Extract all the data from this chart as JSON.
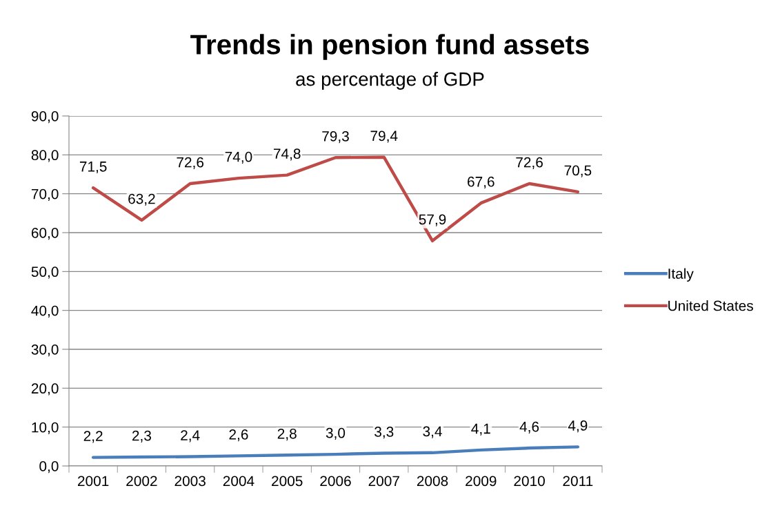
{
  "chart_data": {
    "type": "line",
    "title": "Trends in pension fund assets",
    "subtitle": "as percentage of GDP",
    "categories": [
      "2001",
      "2002",
      "2003",
      "2004",
      "2005",
      "2006",
      "2007",
      "2008",
      "2009",
      "2010",
      "2011"
    ],
    "series": [
      {
        "name": "Italy",
        "color": "#4a7ebb",
        "values": [
          2.2,
          2.3,
          2.4,
          2.6,
          2.8,
          3.0,
          3.3,
          3.4,
          4.1,
          4.6,
          4.9
        ],
        "value_labels": [
          "2,2",
          "2,3",
          "2,4",
          "2,6",
          "2,8",
          "3,0",
          "3,3",
          "3,4",
          "4,1",
          "4,6",
          "4,9"
        ]
      },
      {
        "name": "United States",
        "color": "#be4b48",
        "values": [
          71.5,
          63.2,
          72.6,
          74.0,
          74.8,
          79.3,
          79.4,
          57.9,
          67.6,
          72.6,
          70.5
        ],
        "value_labels": [
          "71,5",
          "63,2",
          "72,6",
          "74,0",
          "74,8",
          "79,3",
          "79,4",
          "57,9",
          "67,6",
          "72,6",
          "70,5"
        ]
      }
    ],
    "ylim": [
      0,
      90
    ],
    "yticks": [
      {
        "value": 0,
        "label": "0,0"
      },
      {
        "value": 10,
        "label": "10,0"
      },
      {
        "value": 20,
        "label": "20,0"
      },
      {
        "value": 30,
        "label": "30,0"
      },
      {
        "value": 40,
        "label": "40,0"
      },
      {
        "value": 50,
        "label": "50,0"
      },
      {
        "value": 60,
        "label": "60,0"
      },
      {
        "value": 70,
        "label": "70,0"
      },
      {
        "value": 80,
        "label": "80,0"
      },
      {
        "value": 90,
        "label": "90,0"
      }
    ],
    "grid": "y",
    "legend": "right",
    "marker": "none",
    "line_style": "solid"
  }
}
